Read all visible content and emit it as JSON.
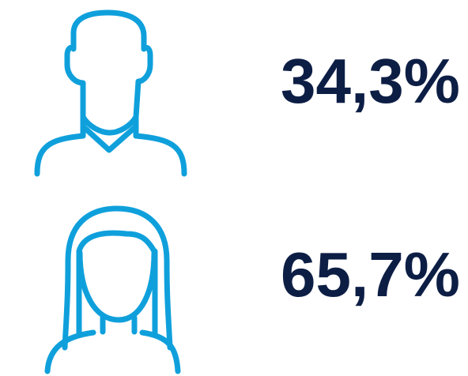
{
  "items": [
    {
      "label": "34,3%"
    },
    {
      "label": "65,7%"
    }
  ]
}
